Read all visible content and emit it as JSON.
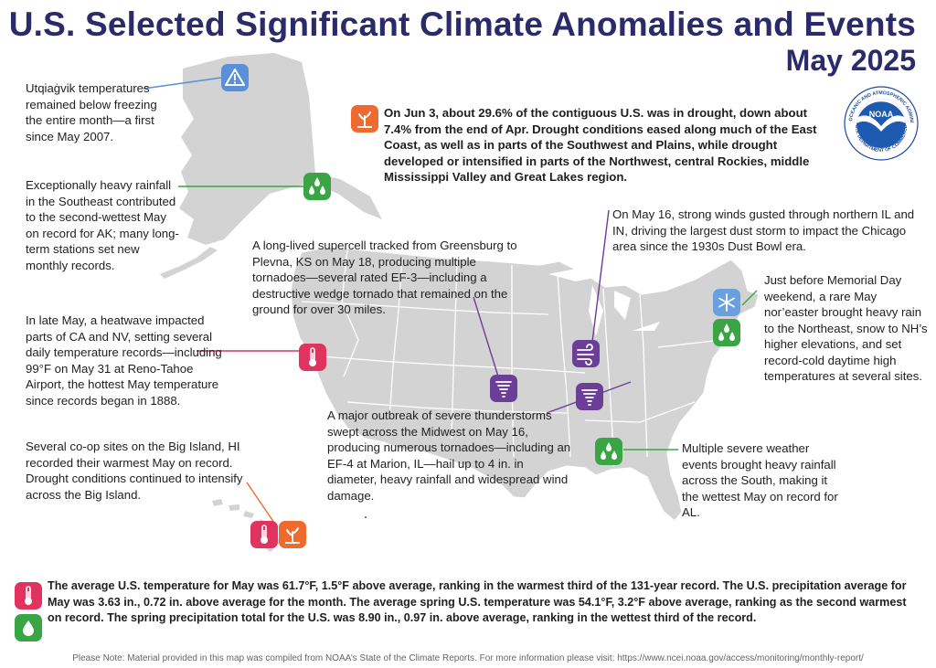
{
  "header": {
    "title": "U.S. Selected Significant Climate Anomalies and Events",
    "subtitle": "May 2025"
  },
  "logo": {
    "name": "noaa-logo",
    "text": "NOAA",
    "ring_top": "NATIONAL OCEANIC AND ATMOSPHERIC ADMINISTRATION",
    "ring_bottom": "U.S. DEPARTMENT OF COMMERCE"
  },
  "colors": {
    "title": "#2b2a6b",
    "land": "#d3d3d3",
    "border": "#ffffff",
    "warning": "#5b8fd6",
    "precip": "#3aa545",
    "heat": "#e0335f",
    "drought": "#ee6a2e",
    "severe": "#6b3f97",
    "snow": "#6aa0df"
  },
  "annotations": {
    "alaska_cold": "Utqiaġvik temperatures remained below freezing the entire month—a first since May 2007.",
    "alaska_rain": "Exceptionally heavy rainfall in the Southeast contributed to the second-wettest May on record for AK; many long-term stations set new monthly records.",
    "drought": "On Jun 3, about 29.6% of the contiguous U.S. was in drought, down about 7.4% from the end of Apr. Drought conditions eased along much of the East Coast, as well as in parts of the Southwest and Plains, while drought developed or intensified in parts of the Northwest, central Rockies, middle Mississippi Valley and Great Lakes region.",
    "dust_storm": "On May 16, strong winds gusted through northern IL and IN, driving the largest dust storm to impact the Chicago area since the 1930s Dust Bowl era.",
    "supercell": "A long-lived supercell tracked from Greensburg to Plevna, KS on May 18, producing multiple tornadoes—several rated EF-3—including a destructive wedge tornado that remained on the ground for over 30 miles.",
    "noreaster": "Just before Memorial Day weekend, a rare May nor’easter brought heavy rain to the Northeast, snow to NH’s higher elevations, and set record-cold daytime high temperatures at several sites.",
    "heatwave": "In late May, a heatwave impacted parts of CA and NV, setting several daily temperature records—including 99°F on May 31 at Reno-Tahoe Airport, the hottest May temperature since records began in 1888.",
    "midwest_outbreak": "A major outbreak of severe thunderstorms swept across the Midwest on May 16, producing numerous tornadoes—including an EF-4 at Marion, IL—hail up to 4 in. in diameter, heavy rainfall and widespread wind damage.",
    "hawaii": "Several co-op sites on the Big Island, HI recorded their warmest May on record. Drought conditions continued to intensify across the Big Island.",
    "south_rain": "Multiple severe weather events brought heavy rainfall across the South, making it the wettest May on record for AL."
  },
  "summary": "The average U.S. temperature for May was 61.7°F, 1.5°F above average, ranking in the warmest third of the 131-year record. The U.S. precipitation average for May was 3.63 in., 0.72 in. above average for the month. The average spring U.S. temperature was 54.1°F, 3.2°F above average, ranking as the second warmest on record. The spring precipitation total for the U.S. was 8.90 in., 0.97 in. above average, ranking in the wettest third of the record.",
  "footer": "Please Note: Material provided in this map was compiled from NOAA’s State of the Climate Reports. For more information please visit: https://www.ncei.noaa.gov/access/monitoring/monthly-report/",
  "icons": [
    {
      "name": "warning-icon",
      "kind": "warning"
    },
    {
      "name": "precipitation-icon",
      "kind": "precip"
    },
    {
      "name": "drought-icon",
      "kind": "drought"
    },
    {
      "name": "dust-storm-icon",
      "kind": "wind"
    },
    {
      "name": "tornado-icon",
      "kind": "tornado"
    },
    {
      "name": "snowflake-icon",
      "kind": "snow"
    },
    {
      "name": "thermometer-icon",
      "kind": "heat"
    }
  ]
}
